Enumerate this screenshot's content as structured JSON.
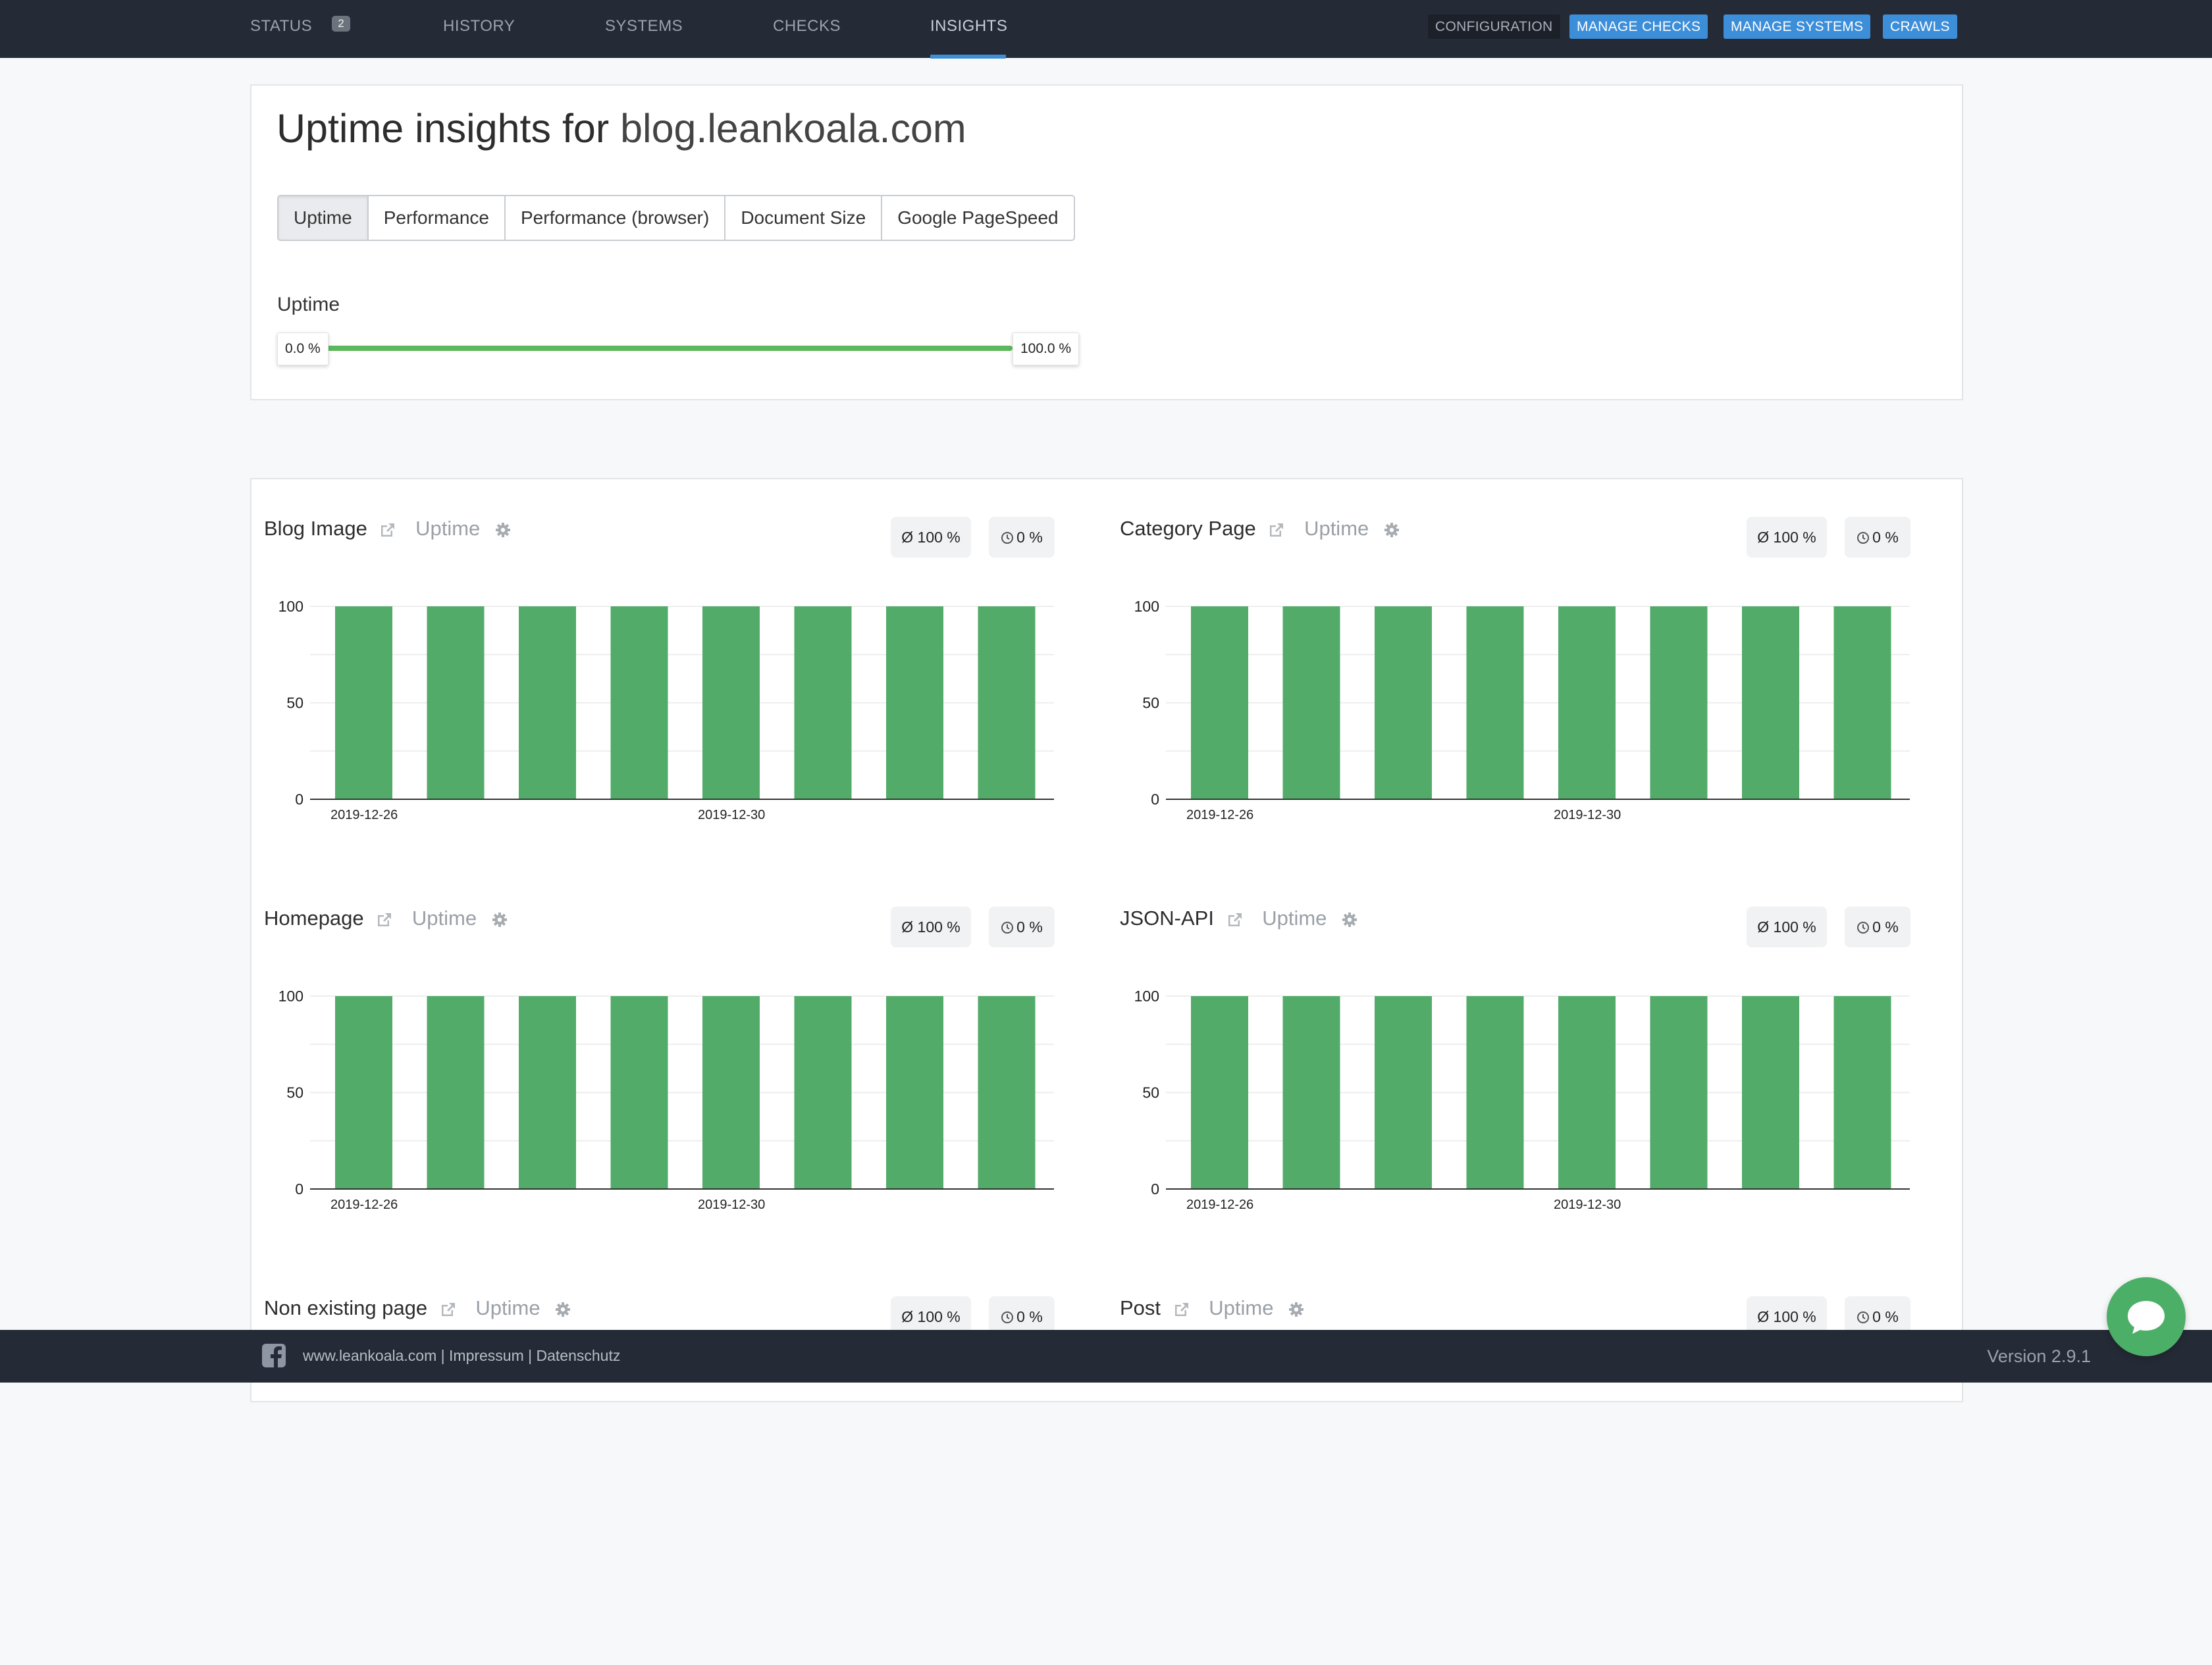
{
  "nav": {
    "items": [
      {
        "label": "STATUS",
        "badge": "2"
      },
      {
        "label": "HISTORY"
      },
      {
        "label": "SYSTEMS"
      },
      {
        "label": "CHECKS"
      },
      {
        "label": "INSIGHTS",
        "active": true
      }
    ],
    "buttons": {
      "configuration": "CONFIGURATION",
      "manage_checks": "MANAGE CHECKS",
      "manage_systems": "MANAGE SYSTEMS",
      "crawls": "CRAWLS"
    }
  },
  "header": {
    "title_prefix": "Uptime insights for",
    "host": "blog.leankoala.com",
    "tabs": [
      "Uptime",
      "Performance",
      "Performance (browser)",
      "Document Size",
      "Google PageSpeed"
    ],
    "active_tab": "Uptime",
    "filter_label": "Uptime",
    "range_min": "0.0 %",
    "range_max": "100.0 %"
  },
  "panels": [
    {
      "name": "Blog Image",
      "metric": "Uptime",
      "avg": "Ø 100 %",
      "downtime": "0 %"
    },
    {
      "name": "Category Page",
      "metric": "Uptime",
      "avg": "Ø 100 %",
      "downtime": "0 %"
    },
    {
      "name": "Homepage",
      "metric": "Uptime",
      "avg": "Ø 100 %",
      "downtime": "0 %"
    },
    {
      "name": "JSON-API",
      "metric": "Uptime",
      "avg": "Ø 100 %",
      "downtime": "0 %"
    },
    {
      "name": "Non existing page",
      "metric": "Uptime",
      "avg": "Ø 100 %",
      "downtime": "0 %"
    },
    {
      "name": "Post",
      "metric": "Uptime",
      "avg": "Ø 100 %",
      "downtime": "0 %"
    }
  ],
  "chart_data": [
    {
      "type": "bar",
      "title": "Blog Image",
      "x_tick_labels": [
        "2019-12-26",
        "2019-12-30"
      ],
      "values": [
        100,
        100,
        100,
        100,
        100,
        100,
        100,
        100
      ],
      "ylim": [
        0,
        100
      ],
      "yticks": [
        0,
        50,
        100
      ],
      "color": "#52ab68"
    },
    {
      "type": "bar",
      "title": "Category Page",
      "x_tick_labels": [
        "2019-12-26",
        "2019-12-30"
      ],
      "values": [
        100,
        100,
        100,
        100,
        100,
        100,
        100,
        100
      ],
      "ylim": [
        0,
        100
      ],
      "yticks": [
        0,
        50,
        100
      ],
      "color": "#52ab68"
    },
    {
      "type": "bar",
      "title": "Homepage",
      "x_tick_labels": [
        "2019-12-26",
        "2019-12-30"
      ],
      "values": [
        100,
        100,
        100,
        100,
        100,
        100,
        100,
        100
      ],
      "ylim": [
        0,
        100
      ],
      "yticks": [
        0,
        50,
        100
      ],
      "color": "#52ab68"
    },
    {
      "type": "bar",
      "title": "JSON-API",
      "x_tick_labels": [
        "2019-12-26",
        "2019-12-30"
      ],
      "values": [
        100,
        100,
        100,
        100,
        100,
        100,
        100,
        100
      ],
      "ylim": [
        0,
        100
      ],
      "yticks": [
        0,
        50,
        100
      ],
      "color": "#52ab68"
    }
  ],
  "footer": {
    "links": "www.leankoala.com | Impressum | Datenschutz",
    "version": "Version 2.9.1"
  },
  "colors": {
    "nav_bg": "#252b36",
    "accent": "#3d8ed8",
    "bar": "#52ab68"
  }
}
